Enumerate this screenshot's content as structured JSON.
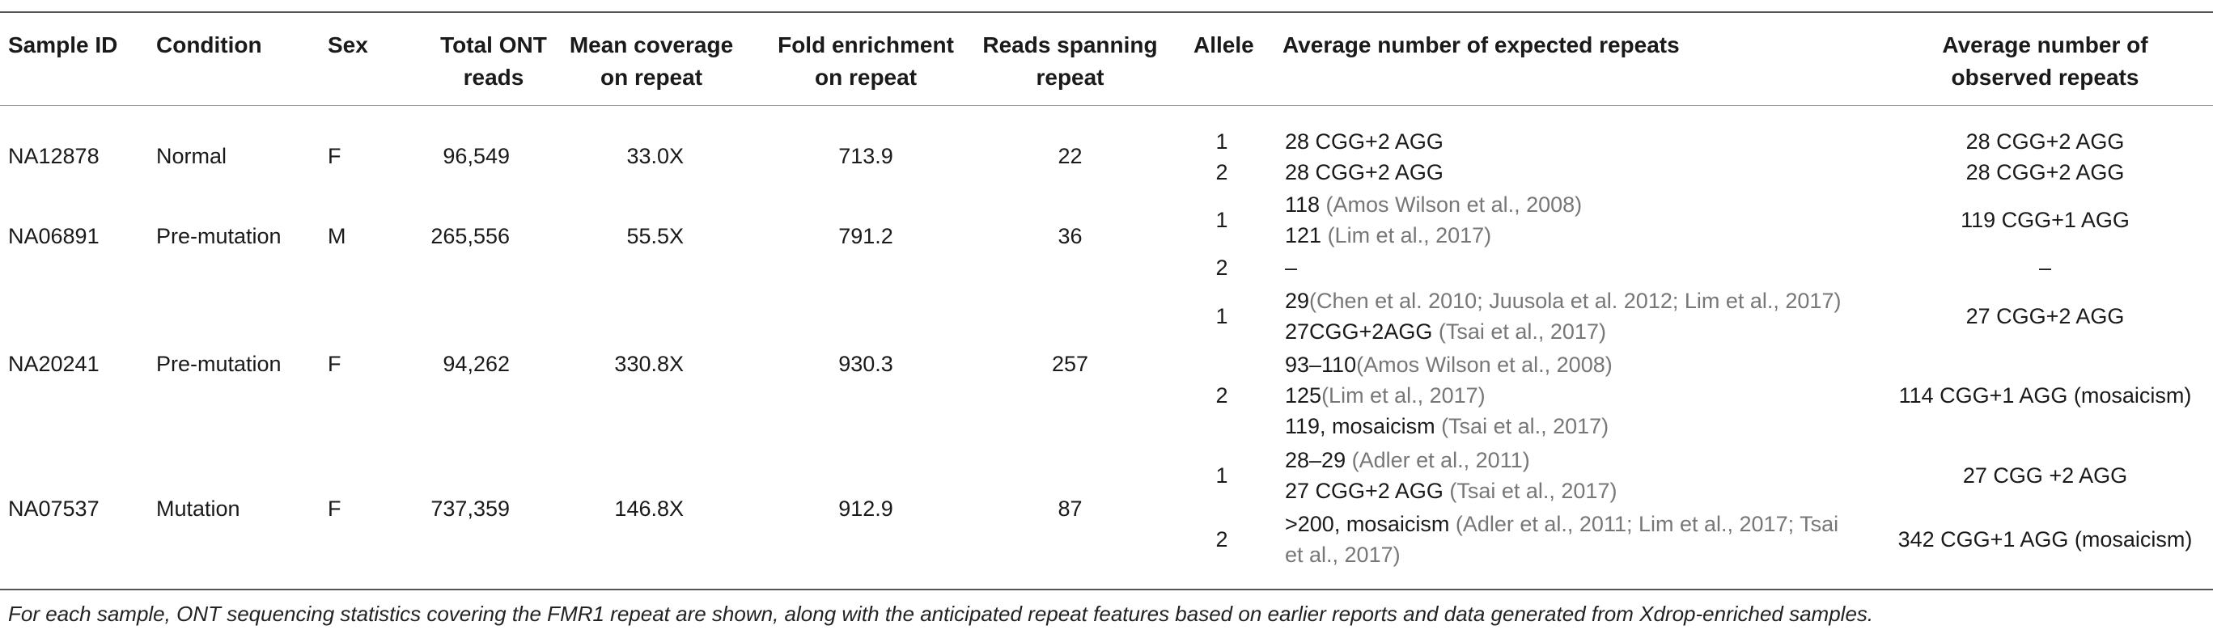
{
  "headers": {
    "sample_id": "Sample ID",
    "condition": "Condition",
    "sex": "Sex",
    "total_reads_1": "Total ONT",
    "total_reads_2": "reads",
    "mean_cov_1": "Mean coverage",
    "mean_cov_2": "on repeat",
    "fold_1": "Fold enrichment",
    "fold_2": "on repeat",
    "spanning_1": "Reads spanning",
    "spanning_2": "repeat",
    "allele": "Allele",
    "expected": "Average number of expected repeats",
    "observed_1": "Average number of",
    "observed_2": "observed repeats"
  },
  "samples": [
    {
      "id": "NA12878",
      "condition": "Normal",
      "sex": "F",
      "total_reads": "96,549",
      "mean_coverage": "33.0X",
      "fold_enrichment": "713.9",
      "reads_spanning": "22"
    },
    {
      "id": "NA06891",
      "condition": "Pre-mutation",
      "sex": "M",
      "total_reads": "265,556",
      "mean_coverage": "55.5X",
      "fold_enrichment": "791.2",
      "reads_spanning": "36"
    },
    {
      "id": "NA20241",
      "condition": "Pre-mutation",
      "sex": "F",
      "total_reads": "94,262",
      "mean_coverage": "330.8X",
      "fold_enrichment": "930.3",
      "reads_spanning": "257"
    },
    {
      "id": "NA07537",
      "condition": "Mutation",
      "sex": "F",
      "total_reads": "737,359",
      "mean_coverage": "146.8X",
      "fold_enrichment": "912.9",
      "reads_spanning": "87"
    }
  ],
  "alleles": [
    {
      "allele": "1",
      "observed": "28 CGG+2 AGG",
      "expected": [
        {
          "text": "28 CGG+2 AGG",
          "ref": ""
        }
      ]
    },
    {
      "allele": "2",
      "observed": "28 CGG+2 AGG",
      "expected": [
        {
          "text": "28 CGG+2 AGG",
          "ref": ""
        }
      ]
    },
    {
      "allele": "1",
      "observed": "119 CGG+1 AGG",
      "expected": [
        {
          "text": "118 ",
          "ref": "(Amos Wilson et al., 2008)"
        },
        {
          "text": "121 ",
          "ref": "(Lim et al., 2017)"
        }
      ]
    },
    {
      "allele": "2",
      "observed": "–",
      "expected": [
        {
          "text": "–",
          "ref": ""
        }
      ]
    },
    {
      "allele": "1",
      "observed": "27 CGG+2 AGG",
      "expected": [
        {
          "text": "29",
          "ref": "(Chen et al. 2010; Juusola et al. 2012; Lim et al., 2017)"
        },
        {
          "text": "27CGG+2AGG ",
          "ref": "(Tsai et al., 2017)"
        }
      ]
    },
    {
      "allele": "2",
      "observed": "114 CGG+1 AGG (mosaicism)",
      "expected": [
        {
          "text": "93–110",
          "ref": "(Amos Wilson et al., 2008)"
        },
        {
          "text": "125",
          "ref": "(Lim et al., 2017)"
        },
        {
          "text": "119, mosaicism ",
          "ref": "(Tsai et al., 2017)"
        }
      ]
    },
    {
      "allele": "1",
      "observed": "27 CGG +2 AGG",
      "expected": [
        {
          "text": "28–29 ",
          "ref": "(Adler et al., 2011)"
        },
        {
          "text": "27 CGG+2 AGG ",
          "ref": "(Tsai et al., 2017)"
        }
      ]
    },
    {
      "allele": "2",
      "observed": "342 CGG+1 AGG (mosaicism)",
      "expected": [
        {
          "text": ">200, mosaicism ",
          "ref": "(Adler et al., 2011; Lim et al., 2017; Tsai"
        },
        {
          "text": "",
          "ref": "et al., 2017)"
        }
      ]
    }
  ],
  "footnote": "For each sample, ONT sequencing statistics covering the FMR1 repeat are shown, along with the anticipated repeat features based on earlier reports and data generated from Xdrop-enriched samples."
}
